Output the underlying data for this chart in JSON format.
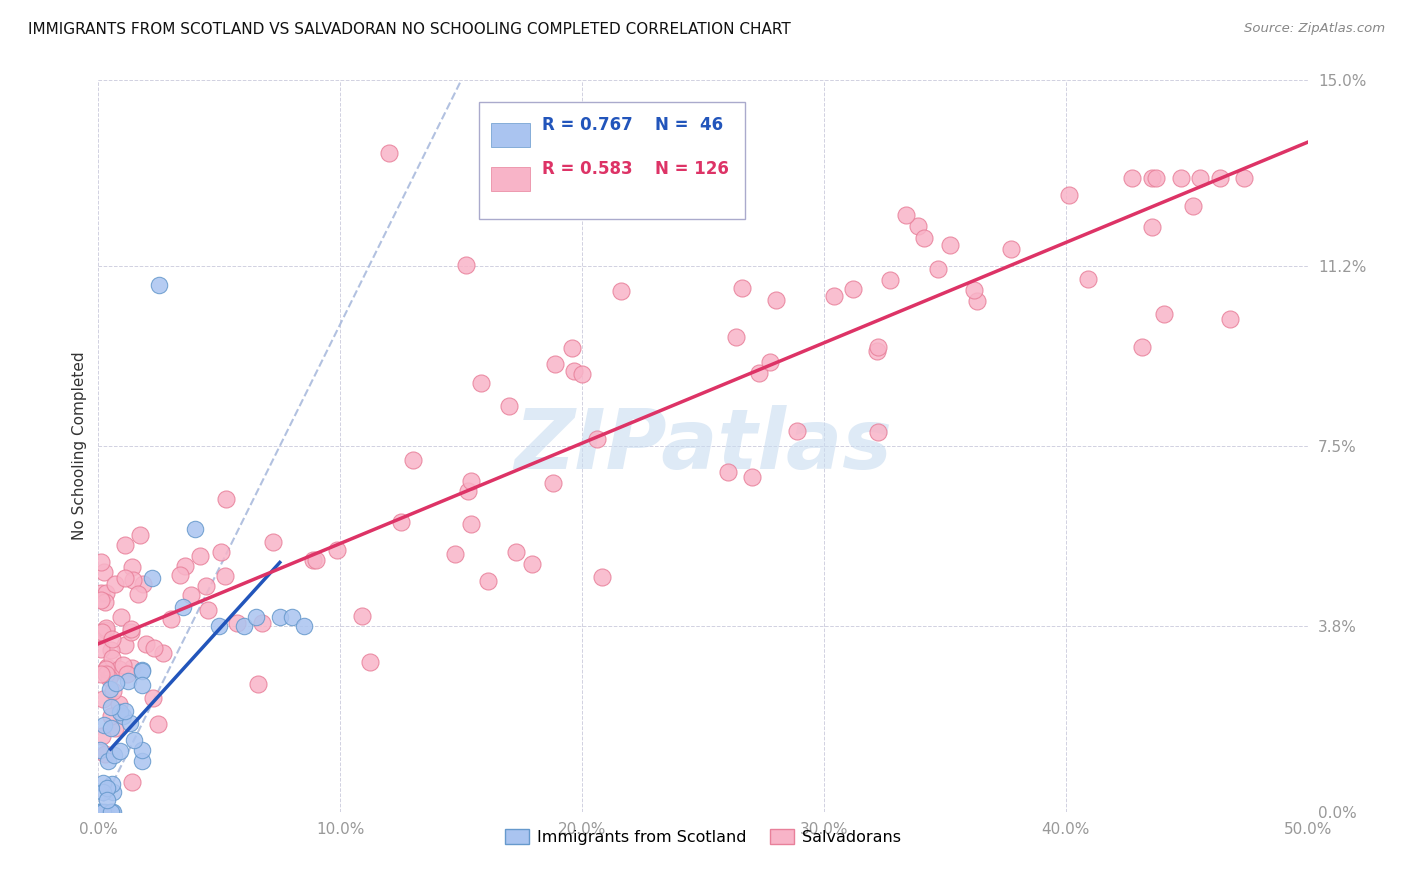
{
  "title": "IMMIGRANTS FROM SCOTLAND VS SALVADORAN NO SCHOOLING COMPLETED CORRELATION CHART",
  "source": "Source: ZipAtlas.com",
  "xlabel_ticks": [
    "0.0%",
    "10.0%",
    "20.0%",
    "30.0%",
    "40.0%",
    "50.0%"
  ],
  "xlabel_vals": [
    0.0,
    0.1,
    0.2,
    0.3,
    0.4,
    0.5
  ],
  "ylabel_ticks": [
    "0.0%",
    "3.8%",
    "7.5%",
    "11.2%",
    "15.0%"
  ],
  "ylabel_vals": [
    0.0,
    0.038,
    0.075,
    0.112,
    0.15
  ],
  "ylabel_label": "No Schooling Completed",
  "xmin": 0.0,
  "xmax": 0.5,
  "ymin": 0.0,
  "ymax": 0.15,
  "scotland_color": "#aac4f0",
  "scotland_edge": "#6699cc",
  "salvadoran_color": "#f8b4c8",
  "salvadoran_edge": "#e8809a",
  "scotland_trendline_color": "#2255bb",
  "salvadoran_trendline_color": "#dd3366",
  "dashed_line_color": "#aabbdd",
  "watermark_color": "#c8dcf0",
  "scotland_R": "0.767",
  "scotland_N": "46",
  "salvadoran_R": "0.583",
  "salvadoran_N": "126",
  "legend_text_color_blue": "#2255bb",
  "legend_text_color_pink": "#dd3366"
}
